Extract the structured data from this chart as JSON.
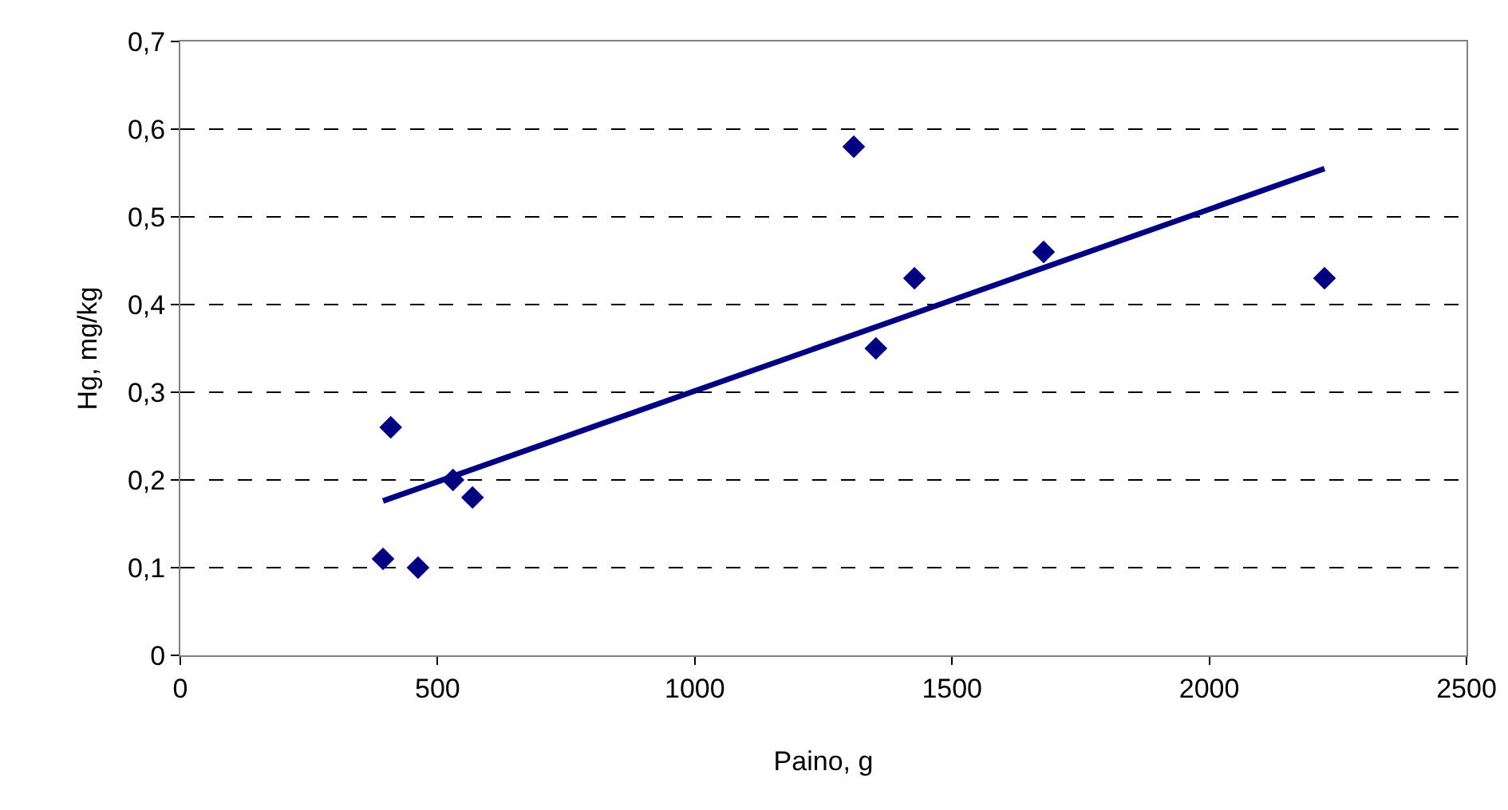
{
  "chart_data": {
    "type": "scatter",
    "xlabel": "Paino, g",
    "ylabel": "Hg, mg/kg",
    "xlim": [
      0,
      2500
    ],
    "xticks": [
      0,
      500,
      1000,
      1500,
      2000,
      2500
    ],
    "ylim": [
      0,
      0.7
    ],
    "yticks": [
      0,
      {
        "value": 0.1,
        "label": "0,1"
      },
      {
        "value": 0.2,
        "label": "0,2"
      },
      {
        "value": 0.3,
        "label": "0,3"
      },
      {
        "value": 0.4,
        "label": "0,4"
      },
      {
        "value": 0.5,
        "label": "0,5"
      },
      {
        "value": 0.6,
        "label": "0,6"
      },
      {
        "value": 0.7,
        "label": "0,7"
      }
    ],
    "grid": "y",
    "marker": "diamond",
    "series": [
      {
        "type": "scatter",
        "color": "#000080",
        "x": [
          394,
          409,
          462,
          530,
          568,
          1309,
          1352,
          1427,
          1678,
          2224
        ],
        "values": [
          0.11,
          0.26,
          0.1,
          0.2,
          0.18,
          0.58,
          0.35,
          0.43,
          0.46,
          0.43
        ]
      },
      {
        "type": "line",
        "color": "#000080",
        "x": [
          394,
          2224
        ],
        "values": [
          0.176,
          0.555
        ],
        "line_style": "solid",
        "marker": "none"
      }
    ]
  }
}
